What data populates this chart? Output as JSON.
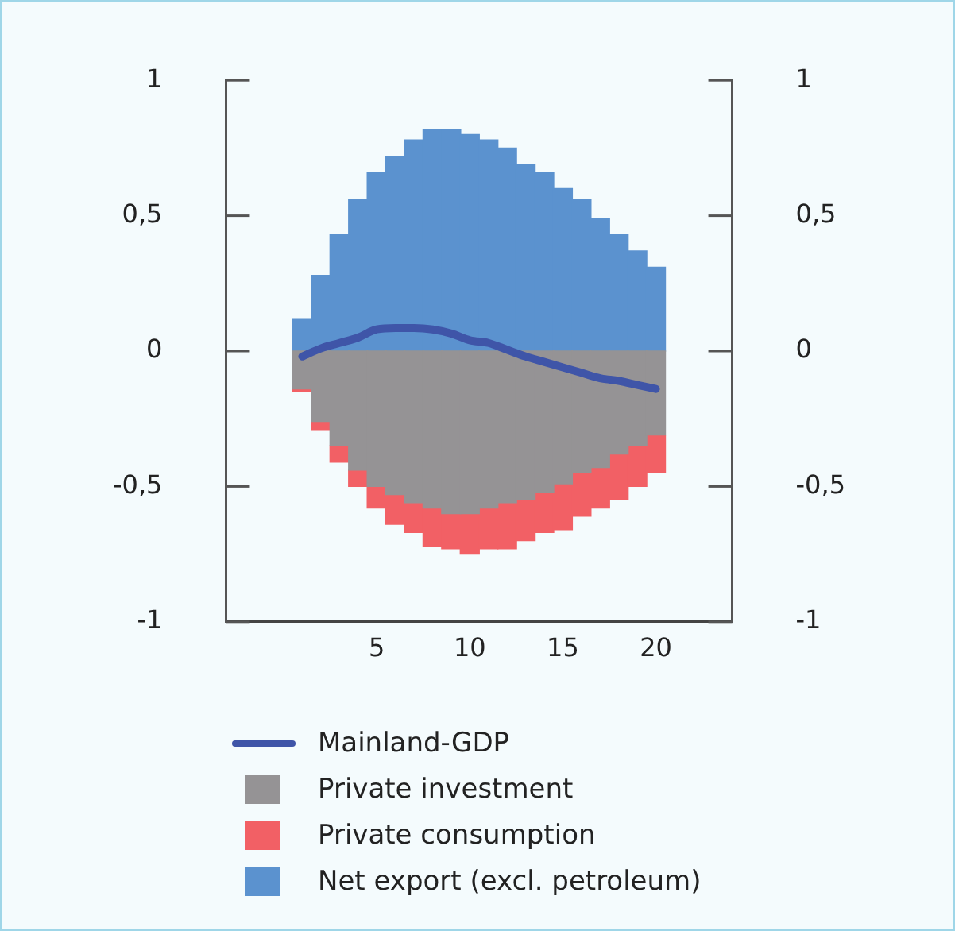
{
  "chart_data": {
    "type": "bar",
    "stacked": true,
    "legend": "bottom",
    "grid": false,
    "x": [
      1,
      2,
      3,
      4,
      5,
      6,
      7,
      8,
      9,
      10,
      11,
      12,
      13,
      14,
      15,
      16,
      17,
      18,
      19,
      20
    ],
    "xlim": [
      0.3,
      20.7
    ],
    "xticks": [
      5,
      10,
      15,
      20
    ],
    "ylim": [
      -1,
      1
    ],
    "yticks": [
      -1,
      {
        "value": -0.5,
        "label": "-0,5"
      },
      0,
      {
        "value": 0.5,
        "label": "0,5"
      },
      1
    ],
    "y2lim": [
      -1,
      1
    ],
    "y2ticks": [
      -1,
      {
        "value": -0.5,
        "label": "-0,5"
      },
      0,
      {
        "value": 0.5,
        "label": "0,5"
      },
      1
    ],
    "series": [
      {
        "name": "Mainland-GDP",
        "type": "line",
        "color": "#3f55a8",
        "values": [
          -0.02,
          0.01,
          0.03,
          0.05,
          0.08,
          0.085,
          0.085,
          0.08,
          0.065,
          0.04,
          0.03,
          0.005,
          -0.02,
          -0.04,
          -0.06,
          -0.08,
          -0.1,
          -0.11,
          -0.125,
          -0.14
        ]
      },
      {
        "name": "Private investment",
        "color": "#959395",
        "values": [
          -0.14,
          -0.26,
          -0.35,
          -0.44,
          -0.5,
          -0.53,
          -0.56,
          -0.58,
          -0.6,
          -0.6,
          -0.58,
          -0.56,
          -0.55,
          -0.52,
          -0.49,
          -0.45,
          -0.43,
          -0.38,
          -0.35,
          -0.31
        ]
      },
      {
        "name": "Private consumption",
        "color": "#f26065",
        "values": [
          -0.01,
          -0.03,
          -0.06,
          -0.06,
          -0.08,
          -0.11,
          -0.11,
          -0.14,
          -0.13,
          -0.15,
          -0.15,
          -0.17,
          -0.15,
          -0.15,
          -0.17,
          -0.16,
          -0.15,
          -0.17,
          -0.15,
          -0.14
        ]
      },
      {
        "name": "Net export (excl. petroleum)",
        "color": "#5b92cf",
        "values": [
          0.12,
          0.28,
          0.43,
          0.56,
          0.66,
          0.72,
          0.78,
          0.82,
          0.82,
          0.8,
          0.78,
          0.75,
          0.69,
          0.66,
          0.6,
          0.56,
          0.49,
          0.43,
          0.37,
          0.31
        ]
      }
    ]
  }
}
